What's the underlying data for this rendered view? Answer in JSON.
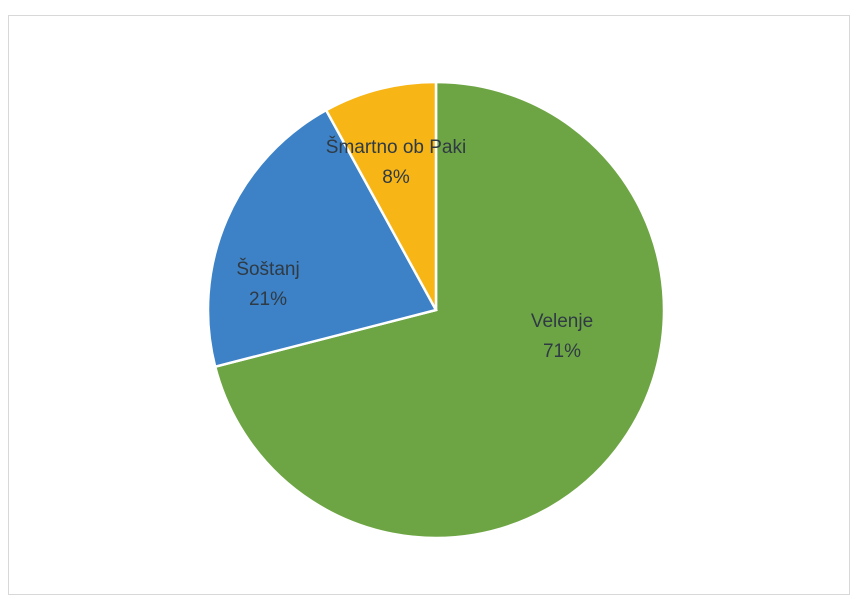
{
  "chart_data": {
    "type": "pie",
    "categories": [
      "Velenje",
      "Šoštanj",
      "Šmartno ob Paki"
    ],
    "values": [
      71,
      21,
      8
    ],
    "value_labels": [
      "71%",
      "21%",
      "8%"
    ],
    "colors": [
      "#6ea544",
      "#3d82c6",
      "#f7b516"
    ]
  }
}
